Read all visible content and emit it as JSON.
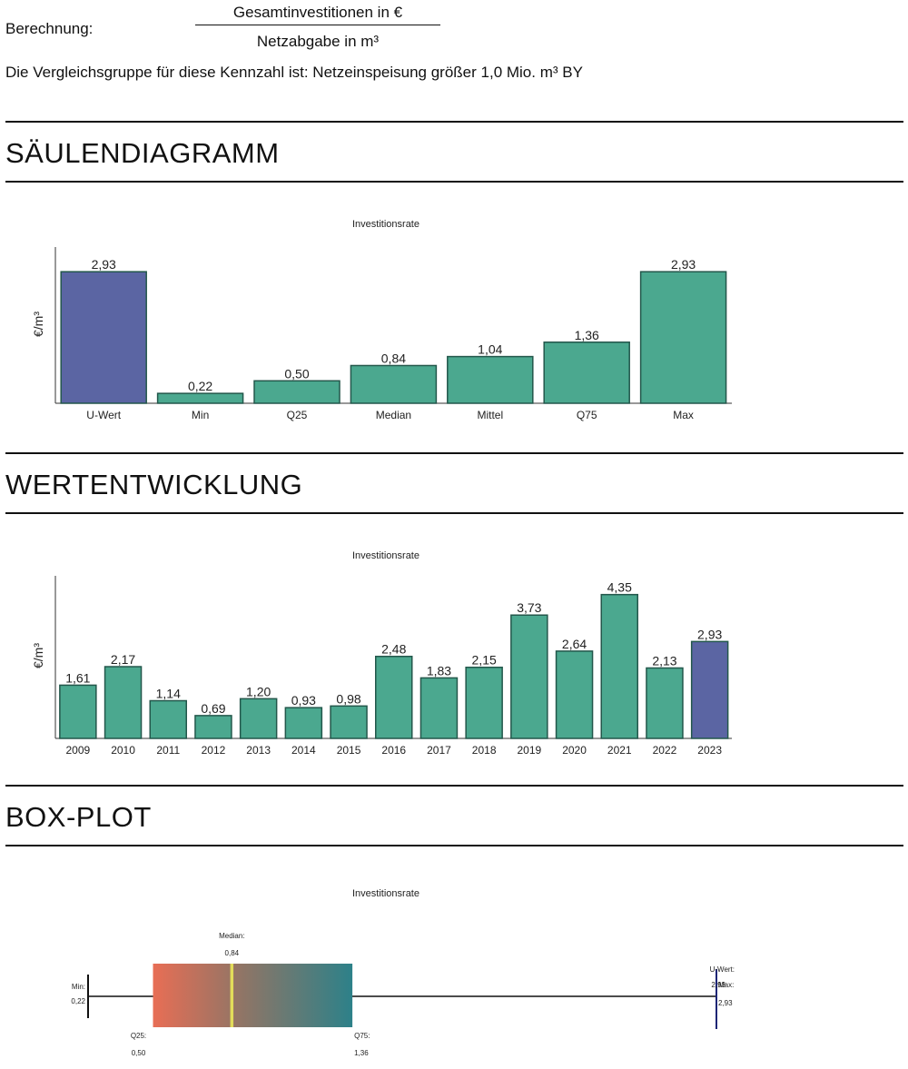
{
  "calculation": {
    "label": "Berechnung:",
    "numerator": "Gesamtinvestitionen in €",
    "denominator": "Netzabgabe in m³"
  },
  "comparison_group": "Die Vergleichsgruppe für diese Kennzahl ist:  Netzeinspeisung größer 1,0 Mio. m³ BY",
  "sections": {
    "bar": "SÄULENDIAGRAMM",
    "trend": "WERTENTWICKLUNG",
    "box": "BOX-PLOT"
  },
  "colors": {
    "teal": "#4ba88f",
    "purple": "#5b65a3",
    "stroke": "#23574b",
    "axis": "#333333"
  },
  "chart_data": [
    {
      "type": "bar",
      "title": "Investitionsrate",
      "ylabel": "€/m³",
      "xlabel": "",
      "categories": [
        "U-Wert",
        "Min",
        "Q25",
        "Median",
        "Mittel",
        "Q75",
        "Max"
      ],
      "values": [
        2.93,
        0.22,
        0.5,
        0.84,
        1.04,
        1.36,
        2.93
      ],
      "value_labels": [
        "2,93",
        "0,22",
        "0,50",
        "0,84",
        "1,04",
        "1,36",
        "2,93"
      ],
      "highlight": [
        "U-Wert"
      ],
      "ylim": [
        0,
        3.5
      ],
      "grid": false
    },
    {
      "type": "bar",
      "title": "Investitionsrate",
      "ylabel": "€/m³",
      "xlabel": "",
      "categories": [
        "2009",
        "2010",
        "2011",
        "2012",
        "2013",
        "2014",
        "2015",
        "2016",
        "2017",
        "2018",
        "2019",
        "2020",
        "2021",
        "2022",
        "2023"
      ],
      "values": [
        1.61,
        2.17,
        1.14,
        0.69,
        1.2,
        0.93,
        0.98,
        2.48,
        1.83,
        2.15,
        3.73,
        2.64,
        4.35,
        2.13,
        2.93
      ],
      "value_labels": [
        "1,61",
        "2,17",
        "1,14",
        "0,69",
        "1,20",
        "0,93",
        "0,98",
        "2,48",
        "1,83",
        "2,15",
        "3,73",
        "2,64",
        "4,35",
        "2,13",
        "2,93"
      ],
      "highlight": [
        "2023"
      ],
      "ylim": [
        0,
        5
      ],
      "grid": false
    },
    {
      "type": "boxplot",
      "title": "Investitionsrate",
      "min": 0.22,
      "q25": 0.5,
      "median": 0.84,
      "q75": 1.36,
      "max": 2.93,
      "u_wert": 2.93,
      "labels": {
        "min": "Min:",
        "min_value": "0,22",
        "q25": "Q25:",
        "q25_value": "0,50",
        "median": "Median:",
        "median_value": "0,84",
        "q75": "Q75:",
        "q75_value": "1,36",
        "max": "Max:",
        "max_value": "2,93",
        "u_wert": "U-Wert:",
        "u_wert_value": "2,93"
      },
      "xlim": [
        0.22,
        2.93
      ]
    }
  ]
}
